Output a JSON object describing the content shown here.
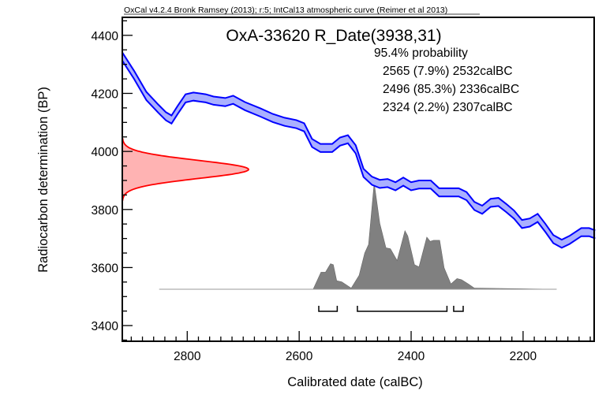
{
  "chart_data": {
    "type": "area",
    "credit": "OxCal v4.2.4 Bronk Ramsey (2013); r:5; IntCal13 atmospheric curve (Reimer et al 2013)",
    "title": "OxA-33620 R_Date(3938,31)",
    "probability_label": "95.4% probability",
    "ranges_text": [
      "2565 (7.9%) 2532calBC",
      "2496 (85.3%) 2336calBC",
      "2324 (2.2%) 2307calBC"
    ],
    "ranges": [
      [
        2565,
        2532
      ],
      [
        2496,
        2336
      ],
      [
        2324,
        2307
      ]
    ],
    "xlabel": "Calibrated date (calBC)",
    "ylabel": "Radiocarbon determination (BP)",
    "xlim": [
      2916,
      2073
    ],
    "ylim": [
      3346,
      4462
    ],
    "xticks": [
      "2800",
      "2600",
      "2400",
      "2200"
    ],
    "xtick_values": [
      2800,
      2600,
      2400,
      2200
    ],
    "yticks": [
      "3400",
      "3600",
      "3800",
      "4000",
      "4200",
      "4400"
    ],
    "ytick_values": [
      3400,
      3600,
      3800,
      4000,
      4200,
      4400
    ],
    "radiocarbon": {
      "mean": 3938,
      "sigma": 31,
      "color": "#ff0000",
      "fill": "#ffb3b3"
    },
    "calibration_curve": {
      "color": "#0000ff",
      "fill": "#aab0ff",
      "band_sigma": 14,
      "x": [
        2916,
        2895,
        2873,
        2852,
        2838,
        2828,
        2817,
        2803,
        2789,
        2767,
        2753,
        2732,
        2718,
        2697,
        2669,
        2647,
        2626,
        2605,
        2591,
        2577,
        2562,
        2541,
        2527,
        2513,
        2499,
        2485,
        2470,
        2456,
        2442,
        2428,
        2414,
        2400,
        2386,
        2365,
        2350,
        2336,
        2315,
        2301,
        2287,
        2273,
        2258,
        2244,
        2230,
        2216,
        2202,
        2188,
        2174,
        2160,
        2146,
        2131,
        2117,
        2096,
        2082,
        2071
      ],
      "y": [
        4327,
        4264,
        4191,
        4148,
        4121,
        4110,
        4143,
        4183,
        4189,
        4183,
        4175,
        4170,
        4178,
        4156,
        4134,
        4115,
        4102,
        4094,
        4083,
        4029,
        4012,
        4012,
        4034,
        4042,
        4007,
        3926,
        3899,
        3888,
        3891,
        3880,
        3896,
        3880,
        3886,
        3886,
        3859,
        3859,
        3859,
        3846,
        3812,
        3799,
        3823,
        3826,
        3805,
        3782,
        3750,
        3755,
        3771,
        3736,
        3698,
        3682,
        3695,
        3722,
        3722,
        3714
      ]
    },
    "calibrated_distribution": {
      "color": "#808080",
      "baseline_range": [
        2850,
        2140
      ],
      "x": [
        2850,
        2575,
        2561,
        2553,
        2544,
        2539,
        2533,
        2524,
        2507,
        2493,
        2483,
        2476,
        2466,
        2456,
        2445,
        2437,
        2425,
        2411,
        2406,
        2394,
        2386,
        2372,
        2366,
        2360,
        2349,
        2341,
        2329,
        2318,
        2310,
        2298,
        2287,
        2140
      ],
      "density": [
        0,
        0,
        0.16,
        0.16,
        0.24,
        0.23,
        0.08,
        0.07,
        0.01,
        0.13,
        0.34,
        0.42,
        1.0,
        0.62,
        0.39,
        0.38,
        0.27,
        0.55,
        0.5,
        0.23,
        0.21,
        0.49,
        0.45,
        0.46,
        0.46,
        0.2,
        0.05,
        0.1,
        0.09,
        0.05,
        0.01,
        0
      ]
    }
  }
}
